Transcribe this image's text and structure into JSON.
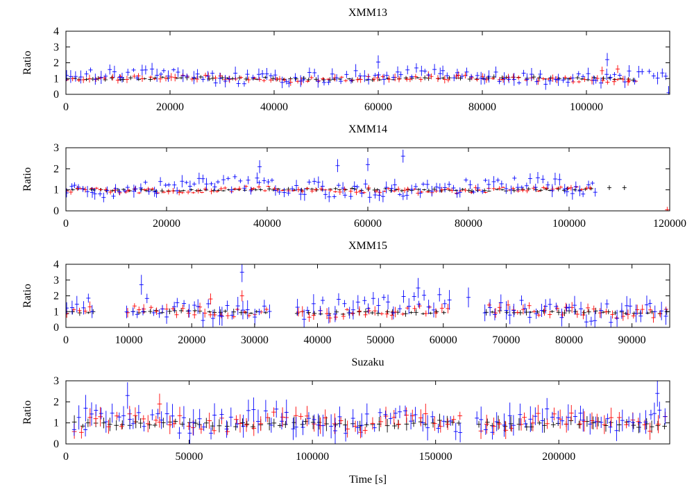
{
  "figure": {
    "xlabel": "Time [s]",
    "colors": {
      "black": "#000000",
      "red": "#ff0000",
      "blue": "#0000ff"
    }
  },
  "chart_data": [
    {
      "type": "scatter",
      "title": "XMM13",
      "ylabel": "Ratio",
      "xlim": [
        0,
        116000
      ],
      "ylim": [
        0,
        4
      ],
      "xticks": [
        0,
        20000,
        40000,
        60000,
        80000,
        100000
      ],
      "yticks": [
        0,
        1,
        2,
        3,
        4
      ],
      "gaps": [],
      "series": [
        {
          "color": "black",
          "x_range": [
            0,
            110000
          ],
          "count": 90,
          "base": 1.0,
          "scatter": 0.07,
          "err": 0.12,
          "seed": 11,
          "outliers": []
        },
        {
          "color": "red",
          "x_range": [
            0,
            110000
          ],
          "count": 105,
          "base": 1.0,
          "scatter": 0.16,
          "err": 0.18,
          "seed": 12,
          "outliers": [
            [
              103000,
              1.5
            ],
            [
              106000,
              1.6
            ],
            [
              108000,
              0.8
            ]
          ]
        },
        {
          "color": "blue",
          "x_range": [
            0,
            116000
          ],
          "count": 130,
          "base": 1.15,
          "scatter": 0.35,
          "err": 0.3,
          "seed": 13,
          "outliers": [
            [
              104000,
              2.2
            ],
            [
              115800,
              0.1
            ],
            [
              60000,
              2.05
            ]
          ]
        }
      ]
    },
    {
      "type": "scatter",
      "title": "XMM14",
      "ylabel": "Ratio",
      "xlim": [
        0,
        120000
      ],
      "ylim": [
        0,
        3
      ],
      "xticks": [
        0,
        20000,
        40000,
        60000,
        80000,
        100000,
        120000
      ],
      "yticks": [
        0,
        1,
        2,
        3
      ],
      "gaps": [],
      "series": [
        {
          "color": "black",
          "x_range": [
            0,
            105000
          ],
          "count": 95,
          "base": 1.0,
          "scatter": 0.05,
          "err": 0.08,
          "seed": 21,
          "outliers": [
            [
              108000,
              1.1
            ],
            [
              111000,
              1.1
            ]
          ]
        },
        {
          "color": "red",
          "x_range": [
            0,
            105000
          ],
          "count": 110,
          "base": 1.0,
          "scatter": 0.12,
          "err": 0.1,
          "seed": 22,
          "outliers": [
            [
              119500,
              0.05
            ]
          ]
        },
        {
          "color": "blue",
          "x_range": [
            0,
            106000
          ],
          "count": 130,
          "base": 1.1,
          "scatter": 0.35,
          "err": 0.22,
          "seed": 23,
          "outliers": [
            [
              67000,
              2.6
            ],
            [
              54000,
              2.15
            ],
            [
              60000,
              2.2
            ],
            [
              38500,
              2.1
            ]
          ]
        }
      ]
    },
    {
      "type": "scatter",
      "title": "XMM15",
      "ylabel": "Ratio",
      "xlim": [
        0,
        96000
      ],
      "ylim": [
        0,
        4
      ],
      "xticks": [
        0,
        10000,
        20000,
        30000,
        40000,
        50000,
        60000,
        70000,
        80000,
        90000
      ],
      "yticks": [
        0,
        1,
        2,
        3,
        4
      ],
      "gaps": [
        [
          4500,
          9200
        ],
        [
          32500,
          36500
        ],
        [
          61000,
          66500
        ]
      ],
      "series": [
        {
          "color": "black",
          "x_range": [
            0,
            96000
          ],
          "count": 95,
          "base": 0.95,
          "scatter": 0.08,
          "err": 0.15,
          "seed": 31,
          "outliers": []
        },
        {
          "color": "red",
          "x_range": [
            0,
            96000
          ],
          "count": 110,
          "base": 1.0,
          "scatter": 0.3,
          "err": 0.25,
          "seed": 32,
          "outliers": [
            [
              28000,
              2.0
            ],
            [
              23000,
              1.8
            ]
          ]
        },
        {
          "color": "blue",
          "x_range": [
            0,
            96000
          ],
          "count": 120,
          "base": 1.2,
          "scatter": 0.6,
          "err": 0.45,
          "seed": 33,
          "outliers": [
            [
              28000,
              3.5
            ],
            [
              12000,
              2.7
            ],
            [
              64000,
              1.9
            ],
            [
              56000,
              2.5
            ]
          ]
        }
      ]
    },
    {
      "type": "scatter",
      "title": "Suzaku",
      "ylabel": "Ratio",
      "xlim": [
        0,
        245000
      ],
      "ylim": [
        0,
        3
      ],
      "xticks": [
        0,
        50000,
        100000,
        150000,
        200000
      ],
      "yticks": [
        0,
        1,
        2,
        3
      ],
      "gaps": [
        [
          160000,
          166000
        ]
      ],
      "series": [
        {
          "color": "black",
          "x_range": [
            3000,
            245000
          ],
          "count": 90,
          "base": 0.95,
          "scatter": 0.12,
          "err": 0.25,
          "seed": 41,
          "outliers": []
        },
        {
          "color": "red",
          "x_range": [
            3000,
            245000
          ],
          "count": 90,
          "base": 1.05,
          "scatter": 0.35,
          "err": 0.35,
          "seed": 42,
          "outliers": [
            [
              38000,
              1.9
            ]
          ]
        },
        {
          "color": "blue",
          "x_range": [
            3000,
            245000
          ],
          "count": 110,
          "base": 1.1,
          "scatter": 0.45,
          "err": 0.45,
          "seed": 43,
          "outliers": [
            [
              25000,
              2.3
            ],
            [
              240000,
              2.4
            ],
            [
              8000,
              1.7
            ]
          ]
        }
      ]
    }
  ]
}
